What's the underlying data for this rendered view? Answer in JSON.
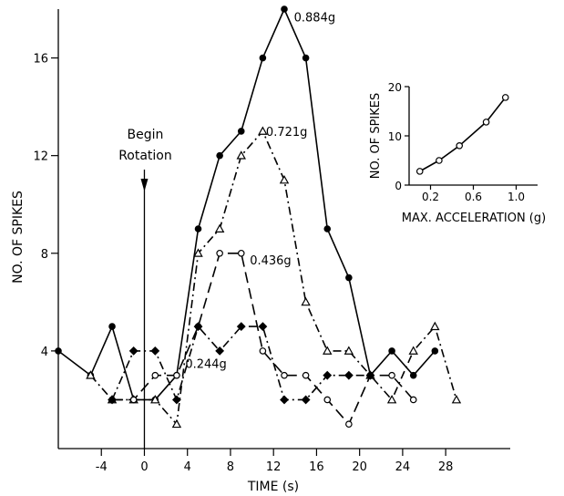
{
  "chart_data": [
    {
      "type": "line",
      "title": "",
      "xlabel": "TIME (s)",
      "ylabel": "NO. OF SPIKES",
      "xlim": [
        -8,
        34
      ],
      "ylim": [
        0,
        18
      ],
      "xticks": [
        -4,
        0,
        4,
        8,
        12,
        16,
        20,
        24,
        28
      ],
      "xtick_labels": [
        "-4",
        "0",
        "4",
        "8",
        "12",
        "16",
        "20",
        "24",
        "28"
      ],
      "yticks": [
        4,
        8,
        12,
        16
      ],
      "ytick_labels": [
        "4",
        "8",
        "12",
        "16"
      ],
      "grid": false,
      "annotation": {
        "lines": [
          "Begin",
          "Rotation"
        ],
        "x": 0
      },
      "series": [
        {
          "name": "0.884g",
          "marker": "filled-circle",
          "dash": "solid",
          "x": [
            -8,
            -5,
            -3,
            -1,
            1,
            3,
            5,
            7,
            9,
            11,
            13,
            15,
            17,
            19,
            21,
            23,
            25,
            27
          ],
          "y": [
            4,
            3,
            5,
            2,
            2,
            3,
            9,
            12,
            13,
            16,
            18,
            16,
            9,
            7,
            3,
            4,
            3,
            4
          ]
        },
        {
          "name": "0.721g",
          "marker": "open-triangle",
          "dash": "dash-dot",
          "x": [
            -5,
            -3,
            -1,
            1,
            3,
            5,
            7,
            9,
            11,
            13,
            15,
            17,
            19,
            21,
            23,
            25,
            27,
            29
          ],
          "y": [
            3,
            2,
            2,
            2,
            1,
            8,
            9,
            12,
            13,
            11,
            6,
            4,
            4,
            3,
            2,
            4,
            5,
            2
          ]
        },
        {
          "name": "0.436g",
          "marker": "open-circle",
          "dash": "long-dash",
          "x": [
            -3,
            -1,
            1,
            3,
            5,
            7,
            9,
            11,
            13,
            15,
            17,
            19,
            21,
            23,
            25
          ],
          "y": [
            2,
            2,
            3,
            3,
            5,
            8,
            8,
            4,
            3,
            3,
            2,
            1,
            3,
            3,
            2
          ]
        },
        {
          "name": "0.244g",
          "marker": "filled-diamond",
          "dash": "dash-dot",
          "x": [
            -3,
            -1,
            1,
            3,
            5,
            7,
            9,
            11,
            13,
            15,
            17,
            19,
            21
          ],
          "y": [
            2,
            4,
            4,
            2,
            5,
            4,
            5,
            5,
            2,
            2,
            3,
            3,
            3
          ]
        }
      ]
    },
    {
      "type": "line",
      "title": "",
      "xlabel": "MAX. ACCELERATION (g)",
      "ylabel": "NO. OF SPIKES",
      "xlim": [
        0,
        1.2
      ],
      "ylim": [
        0,
        20
      ],
      "xticks": [
        0.2,
        0.6,
        1.0
      ],
      "xtick_labels": [
        "0.2",
        "0.6",
        "1.0"
      ],
      "yticks": [
        0,
        10,
        20
      ],
      "ytick_labels": [
        "0",
        "10",
        "20"
      ],
      "grid": false,
      "series": [
        {
          "marker": "open-circle",
          "dash": "solid",
          "x": [
            0.1,
            0.28,
            0.47,
            0.72,
            0.9
          ],
          "y": [
            2.8,
            5,
            8,
            12.8,
            17.8
          ]
        }
      ]
    }
  ]
}
